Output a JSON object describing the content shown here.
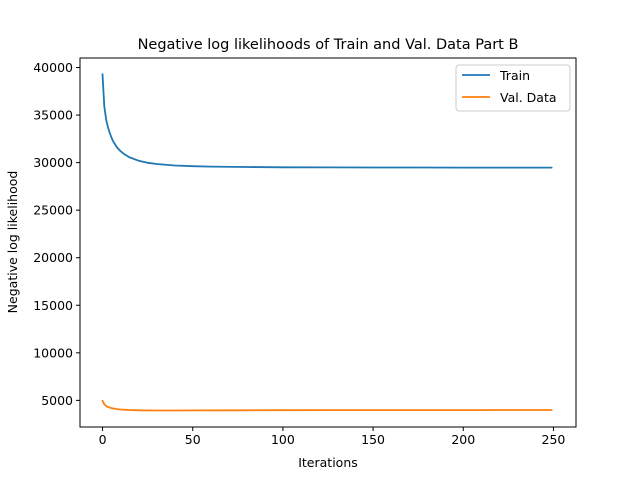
{
  "chart_data": {
    "type": "line",
    "title": "Negative log likelihoods of Train and Val. Data Part B",
    "xlabel": "Iterations",
    "ylabel": "Negative log likelihood",
    "xlim": [
      -12.5,
      262.5
    ],
    "ylim": [
      2200,
      41000
    ],
    "xticks": [
      0,
      50,
      100,
      150,
      200,
      250
    ],
    "yticks": [
      5000,
      10000,
      15000,
      20000,
      25000,
      30000,
      35000,
      40000
    ],
    "grid": false,
    "legend": "upper-right",
    "series": [
      {
        "name": "Train",
        "color": "#1f77b4",
        "x": [
          0,
          1,
          2,
          3,
          4,
          5,
          6,
          8,
          10,
          12,
          15,
          20,
          25,
          30,
          40,
          50,
          60,
          80,
          100,
          125,
          150,
          175,
          200,
          225,
          249
        ],
        "y": [
          39300,
          35900,
          34500,
          33700,
          33100,
          32600,
          32200,
          31600,
          31200,
          30900,
          30550,
          30200,
          29980,
          29850,
          29700,
          29620,
          29580,
          29540,
          29510,
          29500,
          29490,
          29485,
          29480,
          29478,
          29476
        ]
      },
      {
        "name": "Val. Data",
        "color": "#ff7f0e",
        "x": [
          0,
          1,
          2,
          3,
          5,
          8,
          10,
          15,
          20,
          30,
          40,
          50,
          75,
          100,
          125,
          150,
          175,
          200,
          225,
          249
        ],
        "y": [
          4950,
          4600,
          4400,
          4300,
          4180,
          4080,
          4040,
          3990,
          3960,
          3940,
          3940,
          3950,
          3960,
          3970,
          3975,
          3978,
          3980,
          3982,
          3984,
          3985
        ]
      }
    ]
  }
}
